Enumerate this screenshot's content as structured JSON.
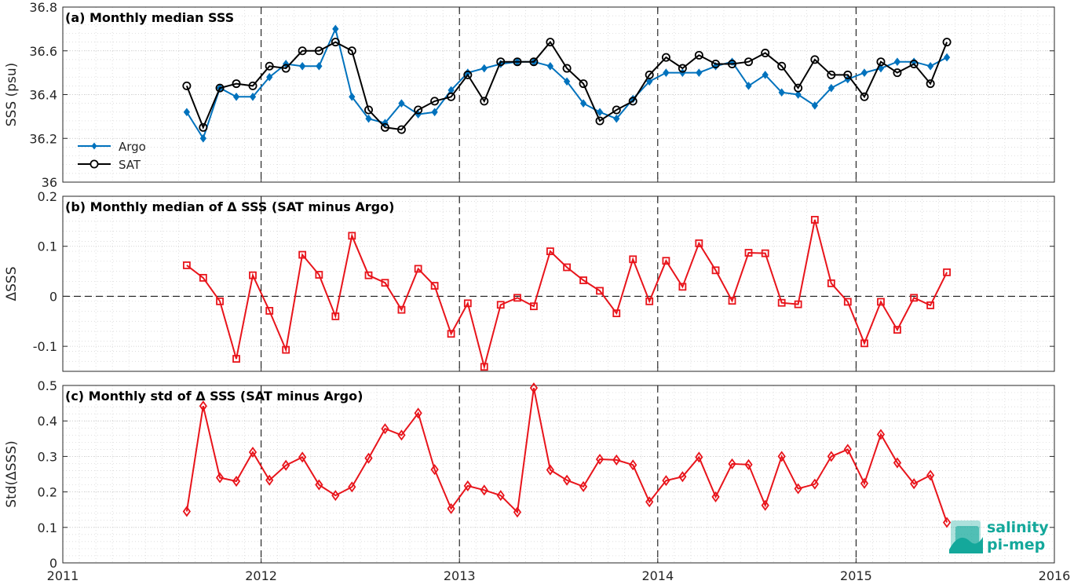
{
  "chart_data": [
    {
      "type": "line",
      "id": "a",
      "title": "(a) Monthly median SSS",
      "ylabel": "SSS (psu)",
      "xlabel": "",
      "xlim": [
        2011,
        2016
      ],
      "ylim": [
        36,
        36.8
      ],
      "yticks": [
        "36",
        "36.2",
        "36.4",
        "36.6",
        "36.8"
      ],
      "ytick_values": [
        36,
        36.2,
        36.4,
        36.6,
        36.8
      ],
      "legend_position": "lower-left",
      "grid": true,
      "x": [
        2011.625,
        2011.708,
        2011.792,
        2011.875,
        2011.958,
        2012.042,
        2012.125,
        2012.208,
        2012.292,
        2012.375,
        2012.458,
        2012.542,
        2012.625,
        2012.708,
        2012.792,
        2012.875,
        2012.958,
        2013.042,
        2013.125,
        2013.208,
        2013.292,
        2013.375,
        2013.458,
        2013.542,
        2013.625,
        2013.708,
        2013.792,
        2013.875,
        2013.958,
        2014.042,
        2014.125,
        2014.208,
        2014.292,
        2014.375,
        2014.458,
        2014.542,
        2014.625,
        2014.708,
        2014.792,
        2014.875,
        2014.958,
        2015.042,
        2015.125,
        2015.208,
        2015.292,
        2015.375,
        2015.458
      ],
      "series": [
        {
          "name": "Argo",
          "color": "#0072bd",
          "marker": "diamond-filled",
          "values": [
            36.32,
            36.2,
            36.43,
            36.39,
            36.39,
            36.48,
            36.54,
            36.53,
            36.53,
            36.7,
            36.39,
            36.29,
            36.27,
            36.36,
            36.31,
            36.32,
            36.42,
            36.5,
            36.52,
            36.54,
            36.55,
            36.55,
            36.53,
            36.46,
            36.36,
            36.32,
            36.29,
            36.38,
            36.46,
            36.5,
            36.5,
            36.5,
            36.53,
            36.55,
            36.44,
            36.49,
            36.41,
            36.4,
            36.35,
            36.43,
            36.47,
            36.5,
            36.52,
            36.55,
            36.55,
            36.53,
            36.57
          ]
        },
        {
          "name": "SAT",
          "color": "#000000",
          "marker": "circle-open",
          "values": [
            36.44,
            36.25,
            36.43,
            36.45,
            36.44,
            36.53,
            36.52,
            36.6,
            36.6,
            36.64,
            36.6,
            36.33,
            36.25,
            36.24,
            36.33,
            36.37,
            36.39,
            36.49,
            36.37,
            36.55,
            36.55,
            36.55,
            36.64,
            36.52,
            36.45,
            36.28,
            36.33,
            36.37,
            36.49,
            36.57,
            36.52,
            36.58,
            36.54,
            36.54,
            36.55,
            36.59,
            36.53,
            36.43,
            36.56,
            36.49,
            36.49,
            36.39,
            36.55,
            36.5,
            36.54,
            36.45,
            36.64
          ]
        }
      ]
    },
    {
      "type": "line",
      "id": "b",
      "title": "(b) Monthly median of Δ SSS (SAT minus Argo)",
      "ylabel": "ΔSSS",
      "xlabel": "",
      "xlim": [
        2011,
        2016
      ],
      "ylim": [
        -0.15,
        0.2
      ],
      "yticks": [
        "-0.1",
        "0",
        "0.1",
        "0.2"
      ],
      "ytick_values": [
        -0.1,
        0,
        0.1,
        0.2
      ],
      "zero_line": true,
      "grid": true,
      "x": [
        2011.625,
        2011.708,
        2011.792,
        2011.875,
        2011.958,
        2012.042,
        2012.125,
        2012.208,
        2012.292,
        2012.375,
        2012.458,
        2012.542,
        2012.625,
        2012.708,
        2012.792,
        2012.875,
        2012.958,
        2013.042,
        2013.125,
        2013.208,
        2013.292,
        2013.375,
        2013.458,
        2013.542,
        2013.625,
        2013.708,
        2013.792,
        2013.875,
        2013.958,
        2014.042,
        2014.125,
        2014.208,
        2014.292,
        2014.375,
        2014.458,
        2014.542,
        2014.625,
        2014.708,
        2014.792,
        2014.875,
        2014.958,
        2015.042,
        2015.125,
        2015.208,
        2015.292,
        2015.375,
        2015.458
      ],
      "series": [
        {
          "name": "",
          "color": "#e8141b",
          "marker": "square-open",
          "values": [
            0.062,
            0.037,
            -0.01,
            -0.125,
            0.042,
            -0.029,
            -0.107,
            0.083,
            0.043,
            -0.04,
            0.121,
            0.042,
            0.027,
            -0.027,
            0.055,
            0.021,
            -0.075,
            -0.014,
            -0.141,
            -0.017,
            -0.003,
            -0.02,
            0.09,
            0.058,
            0.032,
            0.011,
            -0.034,
            0.074,
            -0.01,
            0.071,
            0.019,
            0.106,
            0.052,
            -0.009,
            0.087,
            0.086,
            -0.013,
            -0.016,
            0.153,
            0.026,
            -0.011,
            -0.094,
            -0.011,
            -0.067,
            -0.003,
            -0.018,
            0.048
          ]
        }
      ]
    },
    {
      "type": "line",
      "id": "c",
      "title": "(c) Monthly std of Δ SSS (SAT minus Argo)",
      "ylabel": "Std(ΔSSS)",
      "xlabel": "",
      "xlim": [
        2011,
        2016
      ],
      "ylim": [
        0,
        0.5
      ],
      "yticks": [
        "0",
        "0.1",
        "0.2",
        "0.3",
        "0.4",
        "0.5"
      ],
      "ytick_values": [
        0,
        0.1,
        0.2,
        0.3,
        0.4,
        0.5
      ],
      "xticks": [
        "2011",
        "2012",
        "2013",
        "2014",
        "2015",
        "2016"
      ],
      "xtick_values": [
        2011,
        2012,
        2013,
        2014,
        2015,
        2016
      ],
      "grid": true,
      "x": [
        2011.625,
        2011.708,
        2011.792,
        2011.875,
        2011.958,
        2012.042,
        2012.125,
        2012.208,
        2012.292,
        2012.375,
        2012.458,
        2012.542,
        2012.625,
        2012.708,
        2012.792,
        2012.875,
        2012.958,
        2013.042,
        2013.125,
        2013.208,
        2013.292,
        2013.375,
        2013.458,
        2013.542,
        2013.625,
        2013.708,
        2013.792,
        2013.875,
        2013.958,
        2014.042,
        2014.125,
        2014.208,
        2014.292,
        2014.375,
        2014.458,
        2014.542,
        2014.625,
        2014.708,
        2014.792,
        2014.875,
        2014.958,
        2015.042,
        2015.125,
        2015.208,
        2015.292,
        2015.375,
        2015.458
      ],
      "series": [
        {
          "name": "",
          "color": "#e8141b",
          "marker": "diamond-open",
          "values": [
            0.145,
            0.442,
            0.24,
            0.23,
            0.312,
            0.233,
            0.275,
            0.298,
            0.22,
            0.19,
            0.214,
            0.295,
            0.378,
            0.36,
            0.422,
            0.263,
            0.153,
            0.217,
            0.205,
            0.19,
            0.143,
            0.493,
            0.262,
            0.233,
            0.215,
            0.292,
            0.29,
            0.276,
            0.172,
            0.232,
            0.243,
            0.298,
            0.186,
            0.279,
            0.277,
            0.162,
            0.3,
            0.209,
            0.222,
            0.3,
            0.32,
            0.224,
            0.362,
            0.282,
            0.223,
            0.247,
            0.114
          ]
        }
      ]
    }
  ],
  "logo": {
    "line1": "salinity",
    "line2": "pi-mep",
    "color": "#14a89b"
  }
}
